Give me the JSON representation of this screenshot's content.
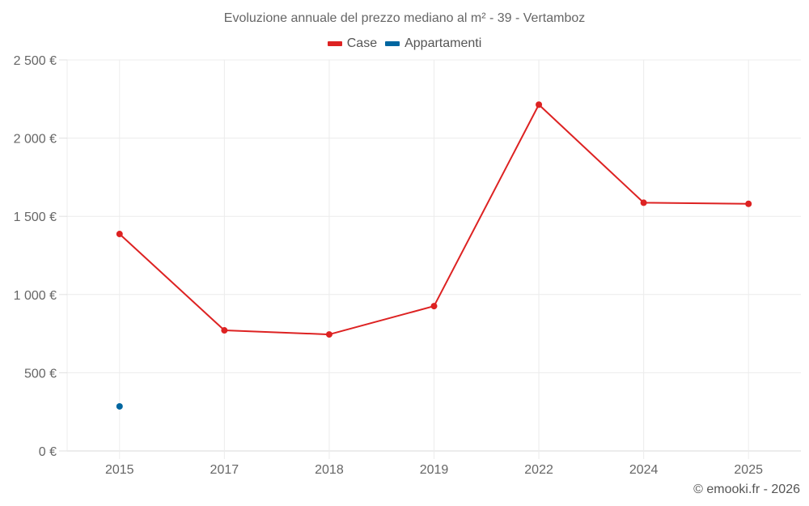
{
  "title": "Evoluzione annuale del prezzo mediano al m² - 39 - Vertamboz",
  "legend": [
    {
      "label": "Case",
      "color": "#dd2222"
    },
    {
      "label": "Appartamenti",
      "color": "#0066a0"
    }
  ],
  "credit": "© emooki.fr - 2026",
  "y_ticks": [
    "0 €",
    "500 €",
    "1 000 €",
    "1 500 €",
    "2 000 €",
    "2 500 €"
  ],
  "chart_data": {
    "type": "line",
    "title": "Evoluzione annuale del prezzo mediano al m² - 39 - Vertamboz",
    "xlabel": "",
    "ylabel": "",
    "categories": [
      "2015",
      "2017",
      "2018",
      "2019",
      "2022",
      "2024",
      "2025"
    ],
    "series": [
      {
        "name": "Case",
        "color": "#dd2222",
        "values": [
          1387,
          771,
          745,
          926,
          2214,
          1587,
          1580
        ]
      },
      {
        "name": "Appartamenti",
        "color": "#0066a0",
        "values": [
          285,
          null,
          null,
          null,
          null,
          null,
          null
        ]
      }
    ],
    "ylim": [
      0,
      2500
    ],
    "y_tick_values": [
      0,
      500,
      1000,
      1500,
      2000,
      2500
    ],
    "grid": true,
    "legend_position": "top"
  }
}
